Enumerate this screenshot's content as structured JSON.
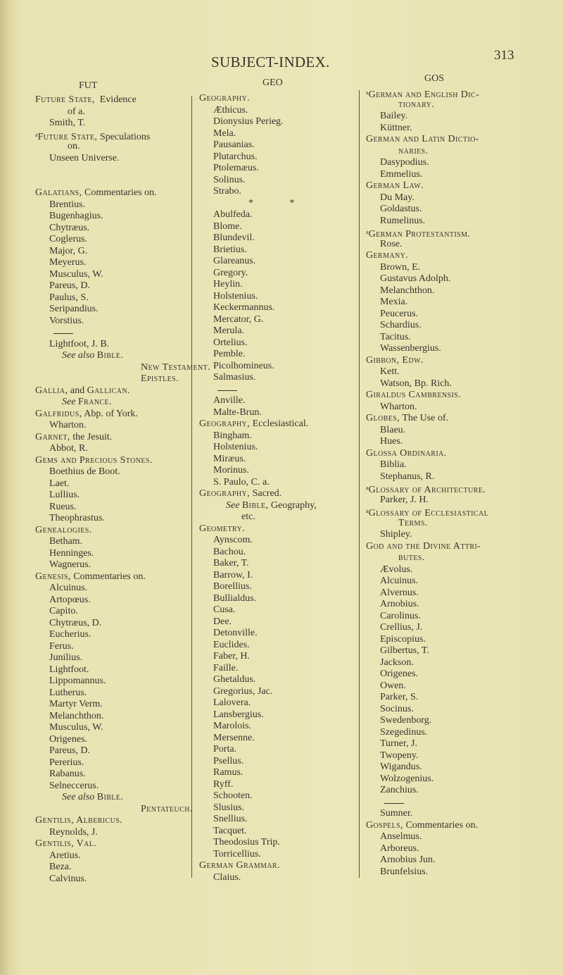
{
  "header": {
    "title": "SUBJECT-INDEX.",
    "page_number": "313"
  },
  "columns": [
    {
      "heading": "FUT",
      "lines": [
        {
          "k": "h",
          "p": [
            {
              "s": "sc",
              "v": "Future State,"
            },
            {
              "s": "t",
              "v": "  Evidence"
            }
          ]
        },
        {
          "k": "c",
          "p": [
            {
              "s": "t",
              "v": "of a."
            }
          ]
        },
        "Smith, T.",
        {
          "k": "h",
          "p": [
            {
              "s": "sup",
              "v": "a"
            },
            {
              "s": "sc",
              "v": "Future State,"
            },
            {
              "s": "t",
              "v": " Speculations"
            }
          ]
        },
        {
          "k": "c",
          "p": [
            {
              "s": "t",
              "v": "on."
            }
          ]
        },
        "Unseen Universe.",
        {
          "k": "b"
        },
        {
          "k": "b"
        },
        {
          "k": "h",
          "p": [
            {
              "s": "sc",
              "v": "Galatians,"
            },
            {
              "s": "t",
              "v": " Commentaries on."
            }
          ]
        },
        "Brentius.",
        "Bugenhagius.",
        "Chytræus.",
        "Coglerus.",
        "Major, G.",
        "Meyerus.",
        "Musculus, W.",
        "Pareus, D.",
        "Paulus, S.",
        "Seripandius.",
        "Vorstius.",
        {
          "k": "r"
        },
        "Lightfoot, J. B.",
        {
          "k": "x",
          "p": [
            {
              "s": "i",
              "v": "See also"
            },
            {
              "s": "t",
              "v": " "
            },
            {
              "s": "sc",
              "v": "Bible."
            }
          ]
        },
        {
          "k": "x2",
          "p": [
            {
              "s": "sc",
              "v": "New Testament."
            }
          ]
        },
        {
          "k": "x2",
          "p": [
            {
              "s": "sc",
              "v": "Epistles."
            }
          ]
        },
        {
          "k": "h",
          "p": [
            {
              "s": "sc",
              "v": "Gallia,"
            },
            {
              "s": "t",
              "v": " and "
            },
            {
              "s": "sc",
              "v": "Gallican."
            }
          ]
        },
        {
          "k": "x",
          "p": [
            {
              "s": "i",
              "v": "See"
            },
            {
              "s": "t",
              "v": " "
            },
            {
              "s": "sc",
              "v": "France."
            }
          ]
        },
        {
          "k": "h",
          "p": [
            {
              "s": "sc",
              "v": "Galfridus,"
            },
            {
              "s": "t",
              "v": " Abp. of York."
            }
          ]
        },
        "Wharton.",
        {
          "k": "h",
          "p": [
            {
              "s": "sc",
              "v": "Garnet,"
            },
            {
              "s": "t",
              "v": " the Jesuit."
            }
          ]
        },
        "Abbot, R.",
        {
          "k": "h",
          "p": [
            {
              "s": "sc",
              "v": "Gems and Precious Stones."
            }
          ]
        },
        "Boethius de Boot.",
        "Laet.",
        "Lullius.",
        "Rueus.",
        "Theophrastus.",
        {
          "k": "h",
          "p": [
            {
              "s": "sc",
              "v": "Genealogies."
            }
          ]
        },
        "Betham.",
        "Henninges.",
        "Wagnerus.",
        {
          "k": "h",
          "p": [
            {
              "s": "sc",
              "v": "Genesis,"
            },
            {
              "s": "t",
              "v": " Commentaries on."
            }
          ]
        },
        "Alcuinus.",
        "Artopœus.",
        "Capito.",
        "Chytræus, D.",
        "Eucherius.",
        "Ferus.",
        "Junilius.",
        "Lightfoot.",
        "Lippomannus.",
        "Lutherus.",
        "Martyr Verm.",
        "Melanchthon.",
        "Musculus, W.",
        "Origenes.",
        "Pareus, D.",
        "Pererius.",
        "Rabanus.",
        "Selneccerus.",
        {
          "k": "x",
          "p": [
            {
              "s": "i",
              "v": "See also"
            },
            {
              "s": "t",
              "v": " "
            },
            {
              "s": "sc",
              "v": "Bible."
            }
          ]
        },
        {
          "k": "x2",
          "p": [
            {
              "s": "sc",
              "v": "Pentateuch."
            }
          ]
        },
        {
          "k": "h",
          "p": [
            {
              "s": "sc",
              "v": "Gentilis, Albericus."
            }
          ]
        },
        "Reynolds, J.",
        {
          "k": "h",
          "p": [
            {
              "s": "sc",
              "v": "Gentilis, Val."
            }
          ]
        },
        "Aretius.",
        "Beza.",
        "Calvinus."
      ]
    },
    {
      "heading": "GEO",
      "lines": [
        {
          "k": "h",
          "p": [
            {
              "s": "sc",
              "v": "Geography."
            }
          ]
        },
        "Æthicus.",
        "Dionysius Perieg.",
        "Mela.",
        "Pausanias.",
        "Plutarchus.",
        "Ptolemæus.",
        "Solinus.",
        "Strabo.",
        {
          "k": "y",
          "p": [
            {
              "s": "t",
              "v": "* *"
            }
          ]
        },
        "Abulfeda.",
        "Blome.",
        "Blundevil.",
        "Brietius.",
        "Glareanus.",
        "Gregory.",
        "Heylin.",
        "Holstenius.",
        "Keckermannus.",
        "Mercator, G.",
        "Merula.",
        "Ortelius.",
        "Pemble.",
        "Picolhomineus.",
        "Salmasius.",
        {
          "k": "r"
        },
        "Anville.",
        "Malte-Brun.",
        {
          "k": "h",
          "p": [
            {
              "s": "sc",
              "v": "Geography,"
            },
            {
              "s": "t",
              "v": " Ecclesiastical."
            }
          ]
        },
        "Bingham.",
        "Holstenius.",
        "Miræus.",
        "Morinus.",
        "S. Paulo, C. a.",
        {
          "k": "h",
          "p": [
            {
              "s": "sc",
              "v": "Geography,"
            },
            {
              "s": "t",
              "v": " Sacred."
            }
          ]
        },
        {
          "k": "x",
          "p": [
            {
              "s": "i",
              "v": "See"
            },
            {
              "s": "t",
              "v": " "
            },
            {
              "s": "sc",
              "v": "Bible,"
            },
            {
              "s": "t",
              "v": " Geography,"
            }
          ]
        },
        {
          "k": "e",
          "p": [
            {
              "s": "t",
              "v": "etc."
            }
          ]
        },
        {
          "k": "h",
          "p": [
            {
              "s": "sc",
              "v": "Geometry."
            }
          ]
        },
        "Aynscom.",
        "Bachou.",
        "Baker, T.",
        "Barrow, I.",
        "Borellius.",
        "Bullialdus.",
        "Cusa.",
        "Dee.",
        "Detonville.",
        "Euclides.",
        "Faber, H.",
        "Faille.",
        "Ghetaldus.",
        "Gregorius, Jac.",
        "Lalovera.",
        "Lansbergius.",
        "Marolois.",
        "Mersenne.",
        "Porta.",
        "Psellus.",
        "Ramus.",
        "Ryff.",
        "Schooten.",
        "Slusius.",
        "Snellius.",
        "Tacquet.",
        "Theodosius Trip.",
        "Torricellius.",
        {
          "k": "h",
          "p": [
            {
              "s": "sc",
              "v": "German Grammar."
            }
          ]
        },
        "Claius."
      ]
    },
    {
      "heading": "GOS",
      "lines": [
        {
          "k": "h",
          "p": [
            {
              "s": "sup",
              "v": "a"
            },
            {
              "s": "sc",
              "v": "German and English Dic-"
            }
          ]
        },
        {
          "k": "c",
          "p": [
            {
              "s": "sc",
              "v": "tionary."
            }
          ]
        },
        "Bailey.",
        "Küttner.",
        {
          "k": "h",
          "p": [
            {
              "s": "sc",
              "v": "German and Latin Dictio-"
            }
          ]
        },
        {
          "k": "c",
          "p": [
            {
              "s": "sc",
              "v": "naries."
            }
          ]
        },
        "Dasypodius.",
        "Emmelius.",
        {
          "k": "h",
          "p": [
            {
              "s": "sc",
              "v": "German Law."
            }
          ]
        },
        "Du May.",
        "Goldastus.",
        "Rumelinus.",
        {
          "k": "h",
          "p": [
            {
              "s": "sup",
              "v": "a"
            },
            {
              "s": "sc",
              "v": "German Protestantism."
            }
          ]
        },
        "Rose.",
        {
          "k": "h",
          "p": [
            {
              "s": "sc",
              "v": "Germany."
            }
          ]
        },
        "Brown, E.",
        "Gustavus Adolph.",
        "Melanchthon.",
        "Mexia.",
        "Peucerus.",
        "Schardius.",
        "Tacitus.",
        "Wassenbergius.",
        {
          "k": "h",
          "p": [
            {
              "s": "sc",
              "v": "Gibbon, Edw."
            }
          ]
        },
        "Kett.",
        "Watson, Bp. Rich.",
        {
          "k": "h",
          "p": [
            {
              "s": "sc",
              "v": "Giraldus Cambrensis."
            }
          ]
        },
        "Wharton.",
        {
          "k": "h",
          "p": [
            {
              "s": "sc",
              "v": "Globes,"
            },
            {
              "s": "t",
              "v": " The Use of."
            }
          ]
        },
        "Blaeu.",
        "Hues.",
        {
          "k": "h",
          "p": [
            {
              "s": "sc",
              "v": "Glossa Ordinaria."
            }
          ]
        },
        "Biblia.",
        "Stephanus, R.",
        {
          "k": "h",
          "p": [
            {
              "s": "sup",
              "v": "a"
            },
            {
              "s": "sc",
              "v": "Glossary of Architecture."
            }
          ]
        },
        "Parker, J. H.",
        {
          "k": "h",
          "p": [
            {
              "s": "sup",
              "v": "a"
            },
            {
              "s": "sc",
              "v": "Glossary of Ecclesiastical"
            }
          ]
        },
        {
          "k": "c",
          "p": [
            {
              "s": "sc",
              "v": "Terms."
            }
          ]
        },
        "Shipley.",
        {
          "k": "h",
          "p": [
            {
              "s": "sc",
              "v": "God and the Divine Attri-"
            }
          ]
        },
        {
          "k": "c",
          "p": [
            {
              "s": "sc",
              "v": "butes."
            }
          ]
        },
        "Ævolus.",
        "Alcuinus.",
        "Alvernus.",
        "Arnobius.",
        "Carolinus.",
        "Crellius, J.",
        "Episcopius.",
        "Gilbertus, T.",
        "Jackson.",
        "Origenes.",
        "Owen.",
        "Parker, S.",
        "Socinus.",
        "Swedenborg.",
        "Szegedinus.",
        "Turner, J.",
        "Twopeny.",
        "Wigandus.",
        "Wolzogenius.",
        "Zanchius.",
        {
          "k": "r"
        },
        "Sumner.",
        {
          "k": "h",
          "p": [
            {
              "s": "sc",
              "v": "Gospels,"
            },
            {
              "s": "t",
              "v": " Commentaries on."
            }
          ]
        },
        "Anselmus.",
        "Arboreus.",
        "Arnobius Jun.",
        "Brunfelsius."
      ]
    }
  ]
}
